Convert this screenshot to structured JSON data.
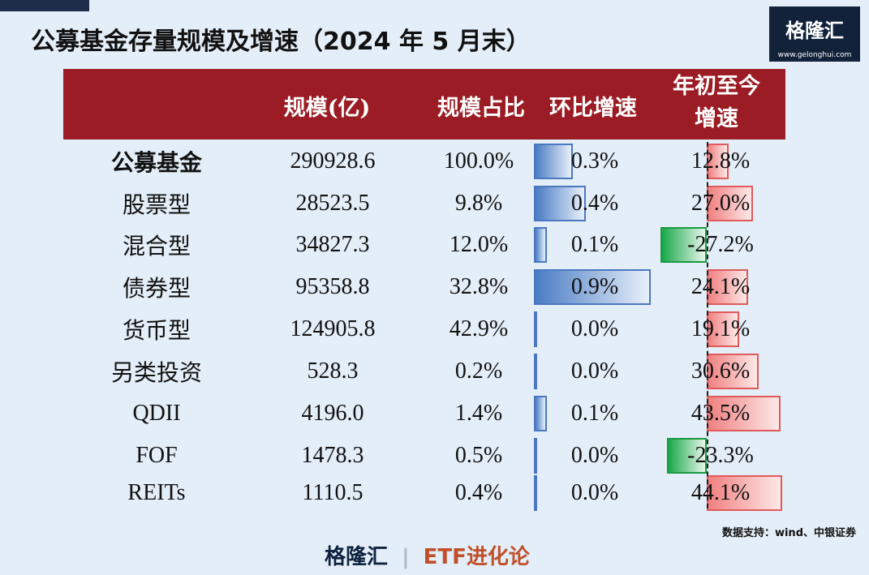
{
  "header": {
    "title": "公募基金存量规模及增速（2024 年 5 月末）",
    "logo": "格隆汇",
    "logo_url": "www.gelonghui.com"
  },
  "table": {
    "columns": [
      "规模(亿)",
      "规模占比",
      "环比增速",
      "年初至今增速"
    ],
    "rows": [
      {
        "name": "公募基金",
        "scale": "290928.6",
        "share": "100.0%",
        "mom": {
          "value": 0.3,
          "label": "0.3%"
        },
        "ytd": {
          "value": 12.8,
          "label": "12.8%"
        }
      },
      {
        "name": "股票型",
        "scale": "28523.5",
        "share": "9.8%",
        "mom": {
          "value": 0.4,
          "label": "0.4%"
        },
        "ytd": {
          "value": 27.0,
          "label": "27.0%"
        }
      },
      {
        "name": "混合型",
        "scale": "34827.3",
        "share": "12.0%",
        "mom": {
          "value": 0.1,
          "label": "0.1%"
        },
        "ytd": {
          "value": -27.2,
          "label": "-27.2%"
        }
      },
      {
        "name": "债券型",
        "scale": "95358.8",
        "share": "32.8%",
        "mom": {
          "value": 0.9,
          "label": "0.9%"
        },
        "ytd": {
          "value": 24.1,
          "label": "24.1%"
        }
      },
      {
        "name": "货币型",
        "scale": "124905.8",
        "share": "42.9%",
        "mom": {
          "value": 0.0,
          "label": "0.0%"
        },
        "ytd": {
          "value": 19.1,
          "label": "19.1%"
        }
      },
      {
        "name": "另类投资",
        "scale": "528.3",
        "share": "0.2%",
        "mom": {
          "value": 0.0,
          "label": "0.0%"
        },
        "ytd": {
          "value": 30.6,
          "label": "30.6%"
        }
      },
      {
        "name": "QDII",
        "scale": "4196.0",
        "share": "1.4%",
        "mom": {
          "value": 0.1,
          "label": "0.1%"
        },
        "ytd": {
          "value": 43.5,
          "label": "43.5%"
        }
      },
      {
        "name": "FOF",
        "scale": "1478.3",
        "share": "0.5%",
        "mom": {
          "value": 0.0,
          "label": "0.0%"
        },
        "ytd": {
          "value": -23.3,
          "label": "-23.3%"
        }
      },
      {
        "name": "REITs",
        "scale": "1110.5",
        "share": "0.4%",
        "mom": {
          "value": 0.0,
          "label": "0.0%"
        },
        "ytd": {
          "value": 44.1,
          "label": "44.1%"
        }
      }
    ]
  },
  "source": "数据支持：wind、中银证券",
  "footer": {
    "brand": "格隆汇",
    "channel": "ETF进化论"
  }
}
